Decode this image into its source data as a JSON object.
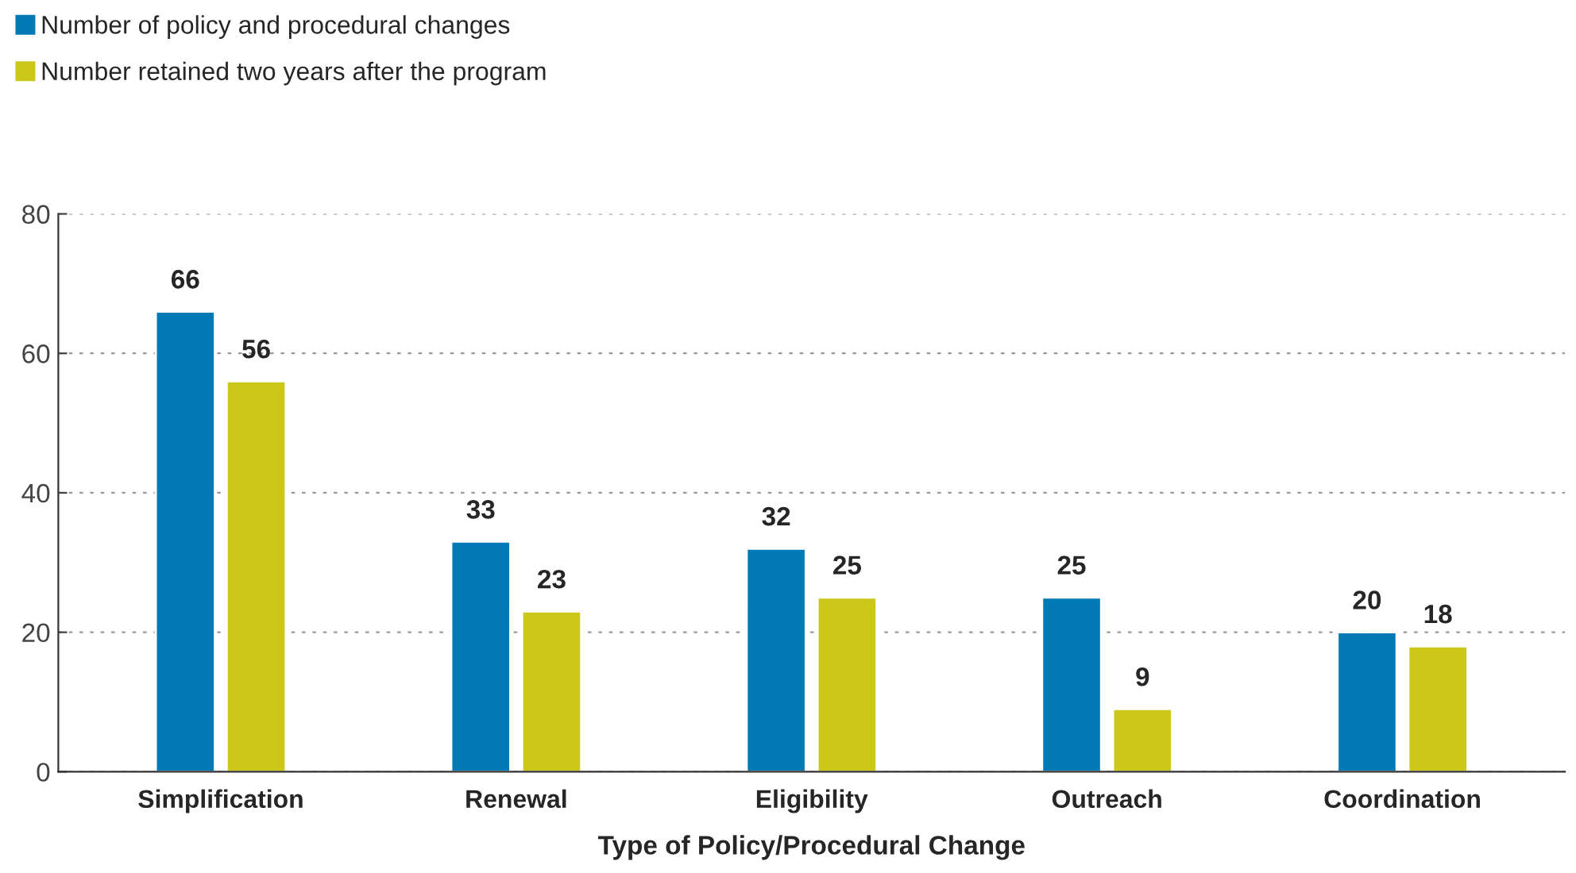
{
  "chart_data": {
    "type": "bar",
    "xlabel": "Type of Policy/Procedural Change",
    "categories": [
      "Simplification",
      "Renewal",
      "Eligibility",
      "Outreach",
      "Coordination"
    ],
    "series": [
      {
        "name": "Number of policy and procedural changes",
        "color": "#0079b5",
        "values": [
          66,
          33,
          32,
          25,
          20
        ]
      },
      {
        "name": "Number retained two years after the program",
        "color": "#cbc81a",
        "values": [
          56,
          23,
          25,
          9,
          18
        ]
      }
    ],
    "ylim": [
      0,
      80
    ],
    "yticks": [
      0,
      20,
      40,
      60,
      80
    ],
    "grid": "y",
    "legend": "top left",
    "data_labels": true
  }
}
